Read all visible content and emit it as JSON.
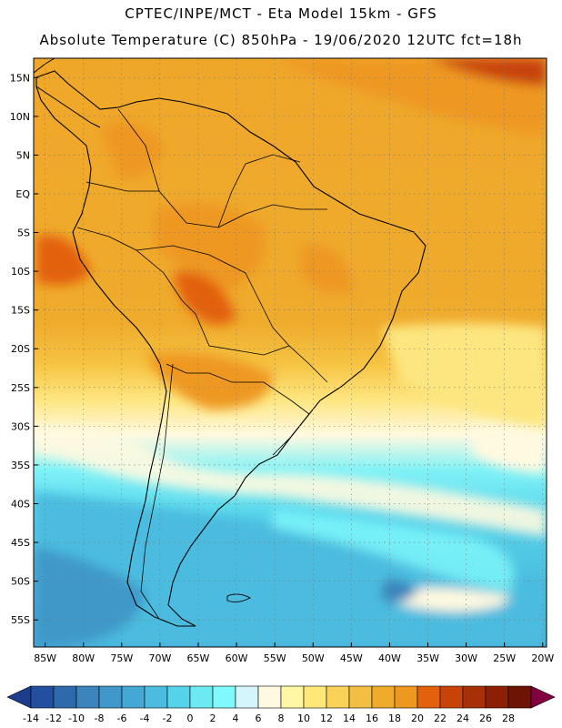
{
  "title": {
    "line1": "CPTEC/INPE/MCT -  Eta Model 15km - GFS",
    "line2": "Absolute Temperature (C) 850hPa - 19/06/2020 12UTC fct=18h"
  },
  "map": {
    "lat_labels": [
      "15N",
      "10N",
      "5N",
      "EQ",
      "5S",
      "10S",
      "15S",
      "20S",
      "25S",
      "30S",
      "35S",
      "40S",
      "45S",
      "50S",
      "55S"
    ],
    "lat_values": [
      15,
      10,
      5,
      0,
      -5,
      -10,
      -15,
      -20,
      -25,
      -30,
      -35,
      -40,
      -45,
      -50,
      -55
    ],
    "lon_labels": [
      "85W",
      "80W",
      "75W",
      "70W",
      "65W",
      "60W",
      "55W",
      "50W",
      "45W",
      "40W",
      "35W",
      "30W",
      "25W",
      "20W"
    ],
    "lon_values": [
      -85,
      -80,
      -75,
      -70,
      -65,
      -60,
      -55,
      -50,
      -45,
      -40,
      -35,
      -30,
      -25,
      -20
    ],
    "lat_range": [
      -58.5,
      17.5
    ],
    "lon_range": [
      -86.5,
      -19.5
    ]
  },
  "colorbar": {
    "labels": [
      "-14",
      "-12",
      "-10",
      "-8",
      "-6",
      "-4",
      "-2",
      "0",
      "2",
      "4",
      "6",
      "8",
      "10",
      "12",
      "14",
      "16",
      "18",
      "20",
      "22",
      "24",
      "26",
      "28"
    ],
    "colors": [
      "#1d3c8c",
      "#23509e",
      "#2e69ac",
      "#3b84bc",
      "#3f98c9",
      "#45a8d4",
      "#4bbcdf",
      "#55d3ea",
      "#6ce9f1",
      "#7ff9fb",
      "#d4f6fb",
      "#fff9e0",
      "#fff7a3",
      "#ffe878",
      "#f9d25a",
      "#f3bf42",
      "#efab2c",
      "#ee9820",
      "#e3610d",
      "#c84308",
      "#a83006",
      "#8c1f04",
      "#6e1404",
      "#820040"
    ]
  }
}
